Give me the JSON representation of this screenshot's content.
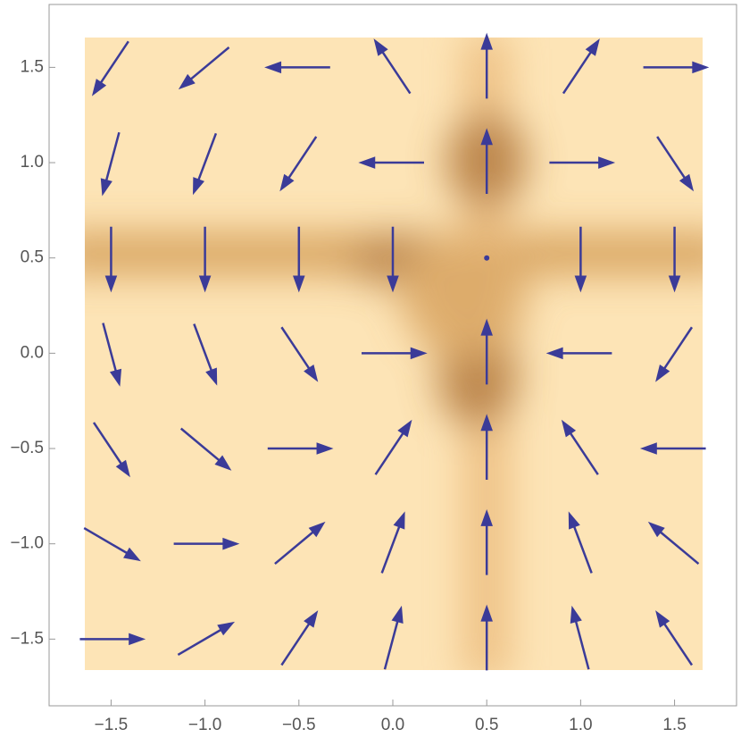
{
  "chart_data": {
    "type": "vector",
    "x": [
      -1.5,
      -1.0,
      -0.5,
      0.0,
      0.5,
      1.0,
      1.5
    ],
    "y": [
      -1.5,
      -1.0,
      -0.5,
      0.0,
      0.5,
      1.0,
      1.5
    ],
    "u": [
      [
        4,
        3,
        2,
        1,
        0,
        -1,
        -2
      ],
      [
        3,
        2.25,
        1.5,
        0.75,
        0,
        -0.75,
        -1.5
      ],
      [
        2,
        1.5,
        1,
        0.5,
        0,
        -0.5,
        -1
      ],
      [
        1,
        0.75,
        0.5,
        0.25,
        0,
        -0.25,
        -0.5
      ],
      [
        0,
        0,
        0,
        0,
        0,
        0,
        0
      ],
      [
        -1,
        -0.75,
        -0.5,
        -0.25,
        0,
        0.25,
        0.5
      ],
      [
        -2,
        -1.5,
        -1,
        -0.5,
        0,
        0.5,
        1
      ]
    ],
    "v": [
      [
        0,
        1.75,
        3,
        3.75,
        4,
        3.75,
        3
      ],
      [
        -1.75,
        0,
        1.25,
        2,
        2.25,
        2,
        1.25
      ],
      [
        -3,
        -1.25,
        0,
        0.75,
        1,
        0.75,
        0
      ],
      [
        -3.75,
        -2,
        -0.75,
        0,
        0.25,
        0,
        -0.75
      ],
      [
        -4,
        -2.25,
        -1,
        -0.25,
        0,
        -0.25,
        -1
      ],
      [
        -3.75,
        -2,
        -0.75,
        0,
        0.25,
        0,
        -0.75
      ],
      [
        -3,
        -1.25,
        0,
        0.75,
        1,
        0.75,
        0
      ]
    ],
    "color": "#3b3b98",
    "xlim": [
      -1.83,
      1.83
    ],
    "ylim": [
      -1.85,
      1.83
    ],
    "xticks": [
      {
        "value": -1.5,
        "label": "−1.5"
      },
      {
        "value": -1.0,
        "label": "−1.0"
      },
      {
        "value": -0.5,
        "label": "−0.5"
      },
      {
        "value": 0.0,
        "label": "0.0"
      },
      {
        "value": 0.5,
        "label": "0.5"
      },
      {
        "value": 1.0,
        "label": "1.0"
      },
      {
        "value": 1.5,
        "label": "1.5"
      }
    ],
    "yticks": [
      {
        "value": -1.5,
        "label": "−1.5"
      },
      {
        "value": -1.0,
        "label": "−1.0"
      },
      {
        "value": -0.5,
        "label": "−0.5"
      },
      {
        "value": 0.0,
        "label": "0.0"
      },
      {
        "value": 0.5,
        "label": "0.5"
      },
      {
        "value": 1.0,
        "label": "1.0"
      },
      {
        "value": 1.5,
        "label": "1.5"
      }
    ]
  }
}
